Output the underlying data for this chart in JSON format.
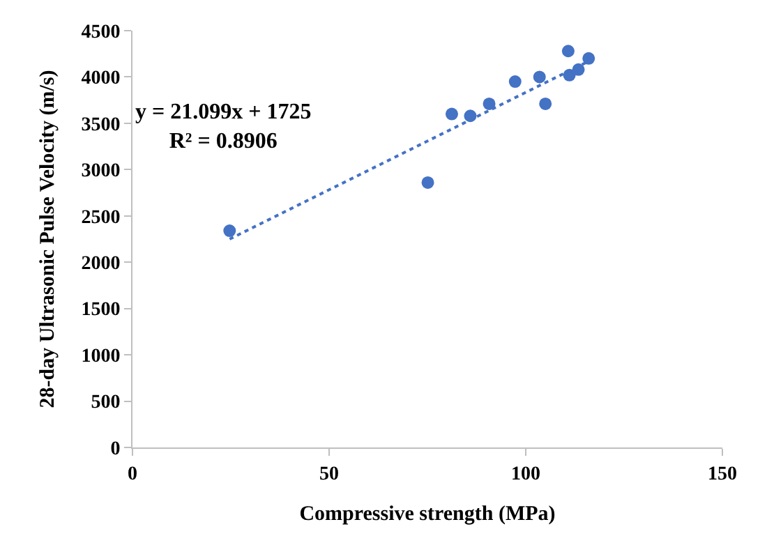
{
  "chart_data": {
    "type": "scatter",
    "xlabel": "Compressive strength (MPa)",
    "ylabel": "28-day Ultrasonic Pulse Velocity (m/s)",
    "xlim": [
      0,
      150
    ],
    "xticks": [
      0,
      50,
      100,
      150
    ],
    "ylim": [
      0,
      4500
    ],
    "yticks": [
      0,
      500,
      1000,
      1500,
      2000,
      2500,
      3000,
      3500,
      4000,
      4500
    ],
    "marker": "circle",
    "series": [
      {
        "color": "#4472c4",
        "x": [
          24.7,
          75.1,
          81.2,
          85.9,
          90.7,
          97.3,
          103.5,
          105.0,
          110.8,
          111.1,
          113.4,
          116.0
        ],
        "values": [
          2340,
          2860,
          3600,
          3580,
          3710,
          3950,
          4000,
          3710,
          4280,
          4020,
          4080,
          4200
        ]
      },
      {
        "type": "line",
        "color": "#4472c4",
        "line_style": "dotted",
        "marker": "none",
        "x": [
          24.7,
          116.0
        ],
        "values": [
          2250,
          4170
        ]
      }
    ],
    "annotations": [
      "y = 21.099x + 1725\nR² = 0.8906"
    ]
  }
}
